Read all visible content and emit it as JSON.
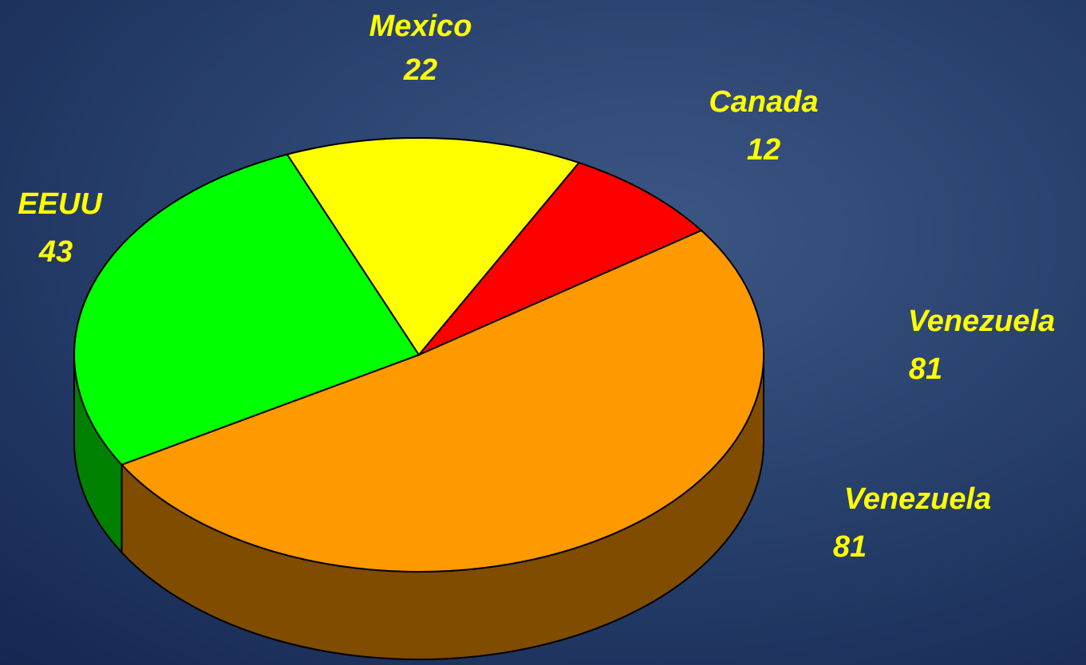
{
  "chart_data": {
    "type": "pie3d",
    "categories": [
      "Venezuela",
      "EEUU",
      "Mexico",
      "Canada"
    ],
    "values": [
      81,
      43,
      22,
      12
    ],
    "colors": [
      "#ff9900",
      "#00ff00",
      "#ffff00",
      "#ff0000"
    ],
    "side_colors": [
      "#7f4c00",
      "#008000",
      "#808000",
      "#800000"
    ],
    "annotations": [
      {
        "label": "Venezuela",
        "value": 81
      }
    ]
  }
}
